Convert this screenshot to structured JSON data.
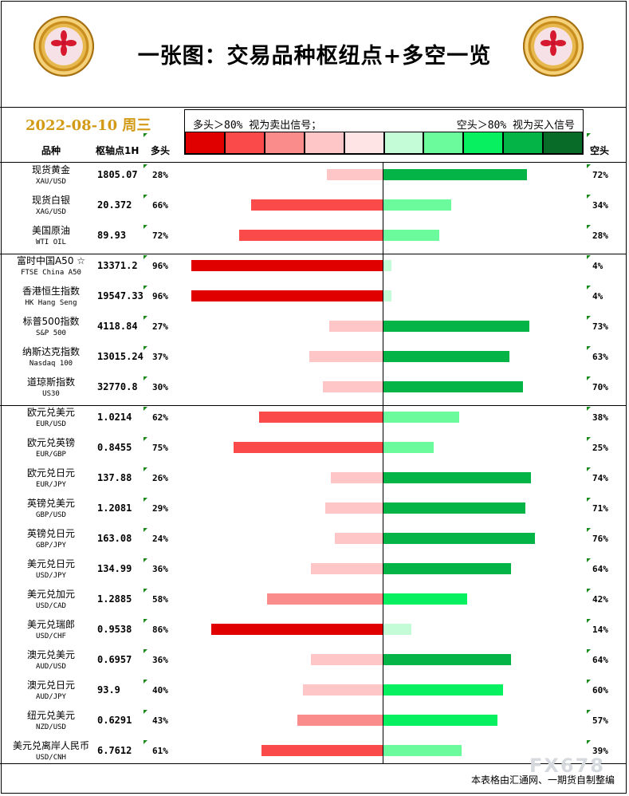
{
  "title": "一张图：交易品种枢纽点+多空一览",
  "date": "2022-08-10 周三",
  "legend": {
    "left_text": "多头＞80% 视为卖出信号；",
    "right_text": "空头＞80% 视为买入信号",
    "swatches": [
      "#e00000",
      "#fb4a4a",
      "#fb8c8c",
      "#fec6c6",
      "#fee4e4",
      "#c4fcd8",
      "#6bfb9d",
      "#06f060",
      "#05b446",
      "#086b28"
    ]
  },
  "headers": {
    "name": "品种",
    "pivot": "枢轴点1H",
    "long": "多头",
    "short": "空头"
  },
  "footer": "本表格由汇通网、一期货自制整编",
  "watermark": "FX678",
  "chart_data": {
    "type": "bar",
    "series": [
      {
        "name": "多头",
        "color_scale": "red"
      },
      {
        "name": "空头",
        "color_scale": "green"
      }
    ],
    "rows": [
      {
        "name": "现货黄金",
        "code": "XAU/USD",
        "pivot": "1805.07",
        "long": 28,
        "short": 72,
        "long_color": "#fec6c6",
        "short_color": "#05b446"
      },
      {
        "name": "现货白银",
        "code": "XAG/USD",
        "pivot": "20.372",
        "long": 66,
        "short": 34,
        "long_color": "#fb4a4a",
        "short_color": "#6bfb9d"
      },
      {
        "name": "美国原油",
        "code": "WTI OIL",
        "pivot": "89.93",
        "long": 72,
        "short": 28,
        "long_color": "#fb4a4a",
        "short_color": "#6bfb9d"
      },
      {
        "name": "富时中国A50 ☆",
        "code": "FTSE China A50",
        "pivot": "13371.2",
        "long": 96,
        "short": 4,
        "long_color": "#e00000",
        "short_color": "#c4fcd8"
      },
      {
        "name": "香港恒生指数",
        "code": "HK Hang Seng",
        "pivot": "19547.33",
        "long": 96,
        "short": 4,
        "long_color": "#e00000",
        "short_color": "#c4fcd8"
      },
      {
        "name": "标普500指数",
        "code": "S&P 500",
        "pivot": "4118.84",
        "long": 27,
        "short": 73,
        "long_color": "#fec6c6",
        "short_color": "#05b446"
      },
      {
        "name": "纳斯达克指数",
        "code": "Nasdaq 100",
        "pivot": "13015.24",
        "long": 37,
        "short": 63,
        "long_color": "#fec6c6",
        "short_color": "#05b446"
      },
      {
        "name": "道琼斯指数",
        "code": "US30",
        "pivot": "32770.8",
        "long": 30,
        "short": 70,
        "long_color": "#fec6c6",
        "short_color": "#05b446"
      },
      {
        "name": "欧元兑美元",
        "code": "EUR/USD",
        "pivot": "1.0214",
        "long": 62,
        "short": 38,
        "long_color": "#fb4a4a",
        "short_color": "#6bfb9d"
      },
      {
        "name": "欧元兑英镑",
        "code": "EUR/GBP",
        "pivot": "0.8455",
        "long": 75,
        "short": 25,
        "long_color": "#fb4a4a",
        "short_color": "#6bfb9d"
      },
      {
        "name": "欧元兑日元",
        "code": "EUR/JPY",
        "pivot": "137.88",
        "long": 26,
        "short": 74,
        "long_color": "#fec6c6",
        "short_color": "#05b446"
      },
      {
        "name": "英镑兑美元",
        "code": "GBP/USD",
        "pivot": "1.2081",
        "long": 29,
        "short": 71,
        "long_color": "#fec6c6",
        "short_color": "#05b446"
      },
      {
        "name": "英镑兑日元",
        "code": "GBP/JPY",
        "pivot": "163.08",
        "long": 24,
        "short": 76,
        "long_color": "#fec6c6",
        "short_color": "#05b446"
      },
      {
        "name": "美元兑日元",
        "code": "USD/JPY",
        "pivot": "134.99",
        "long": 36,
        "short": 64,
        "long_color": "#fec6c6",
        "short_color": "#05b446"
      },
      {
        "name": "美元兑加元",
        "code": "USD/CAD",
        "pivot": "1.2885",
        "long": 58,
        "short": 42,
        "long_color": "#fb8c8c",
        "short_color": "#06f060"
      },
      {
        "name": "美元兑瑞郎",
        "code": "USD/CHF",
        "pivot": "0.9538",
        "long": 86,
        "short": 14,
        "long_color": "#e00000",
        "short_color": "#c4fcd8"
      },
      {
        "name": "澳元兑美元",
        "code": "AUD/USD",
        "pivot": "0.6957",
        "long": 36,
        "short": 64,
        "long_color": "#fec6c6",
        "short_color": "#05b446"
      },
      {
        "name": "澳元兑日元",
        "code": "AUD/JPY",
        "pivot": "93.9",
        "long": 40,
        "short": 60,
        "long_color": "#fec6c6",
        "short_color": "#06f060"
      },
      {
        "name": "纽元兑美元",
        "code": "NZD/USD",
        "pivot": "0.6291",
        "long": 43,
        "short": 57,
        "long_color": "#fb8c8c",
        "short_color": "#06f060"
      },
      {
        "name": "美元兑离岸人民币",
        "code": "USD/CNH",
        "pivot": "6.7612",
        "long": 61,
        "short": 39,
        "long_color": "#fb4a4a",
        "short_color": "#6bfb9d"
      }
    ]
  }
}
